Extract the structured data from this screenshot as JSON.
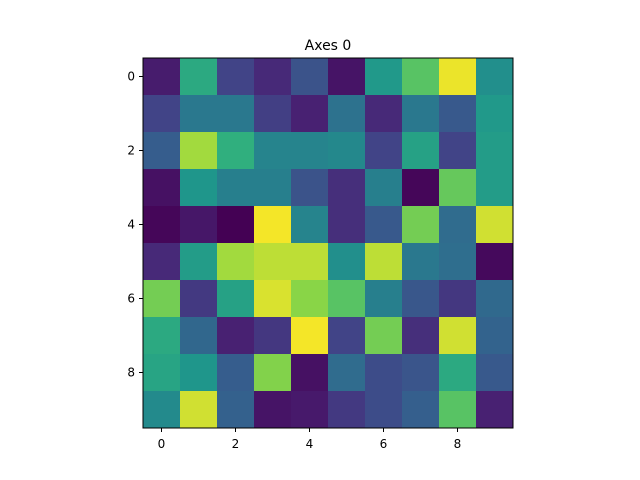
{
  "chart_data": {
    "type": "heatmap",
    "title": "Axes 0",
    "xlabel": "",
    "ylabel": "",
    "colormap": "viridis",
    "value_range": [
      0,
      1
    ],
    "xlim": [
      -0.5,
      9.5
    ],
    "ylim": [
      9.5,
      -0.5
    ],
    "x_ticks": [
      0,
      2,
      4,
      6,
      8
    ],
    "y_ticks": [
      0,
      2,
      4,
      6,
      8
    ],
    "x_tick_labels": [
      "0",
      "2",
      "4",
      "6",
      "8"
    ],
    "y_tick_labels": [
      "0",
      "2",
      "4",
      "6",
      "8"
    ],
    "grid": false,
    "values": [
      [
        0.1,
        0.7,
        0.25,
        0.15,
        0.32,
        0.07,
        0.64,
        0.8,
        0.98,
        0.6
      ],
      [
        0.25,
        0.5,
        0.5,
        0.23,
        0.12,
        0.47,
        0.15,
        0.5,
        0.35,
        0.64
      ],
      [
        0.37,
        0.9,
        0.72,
        0.55,
        0.55,
        0.57,
        0.25,
        0.67,
        0.25,
        0.65
      ],
      [
        0.06,
        0.63,
        0.53,
        0.53,
        0.32,
        0.17,
        0.53,
        0.02,
        0.82,
        0.65
      ],
      [
        0.02,
        0.08,
        0.0,
        0.99,
        0.55,
        0.17,
        0.35,
        0.84,
        0.44,
        0.95
      ],
      [
        0.15,
        0.65,
        0.9,
        0.93,
        0.93,
        0.6,
        0.93,
        0.5,
        0.45,
        0.03
      ],
      [
        0.84,
        0.21,
        0.67,
        0.96,
        0.87,
        0.8,
        0.53,
        0.34,
        0.2,
        0.43
      ],
      [
        0.7,
        0.42,
        0.12,
        0.2,
        0.99,
        0.25,
        0.84,
        0.17,
        0.95,
        0.4
      ],
      [
        0.68,
        0.63,
        0.37,
        0.86,
        0.06,
        0.44,
        0.29,
        0.33,
        0.7,
        0.35
      ],
      [
        0.58,
        0.95,
        0.39,
        0.07,
        0.09,
        0.21,
        0.29,
        0.38,
        0.8,
        0.12
      ]
    ]
  }
}
